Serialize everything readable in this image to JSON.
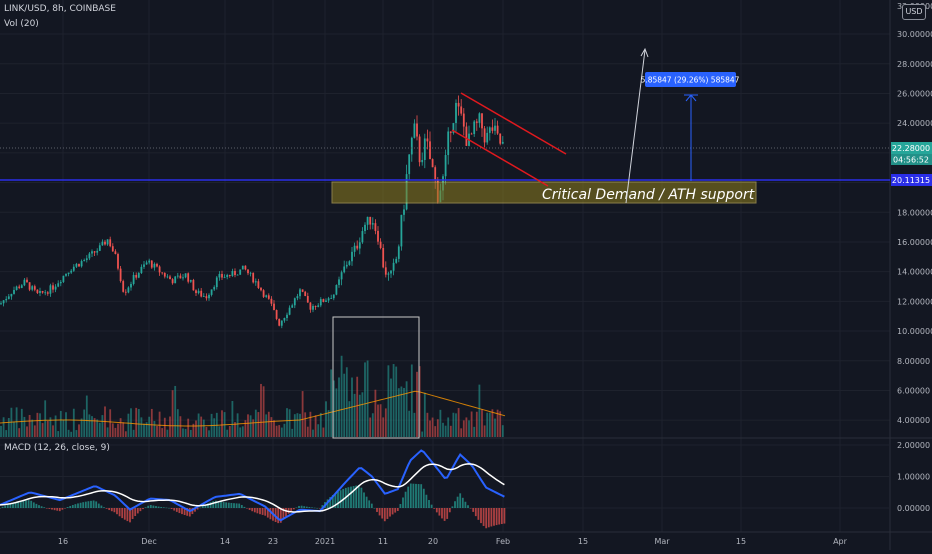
{
  "header": {
    "symbol_line": "LINK/USD, 8h, COINBASE",
    "volume_label": "Vol (20)",
    "macd_label": "MACD (12, 26, close, 9)",
    "currency_button": "USD"
  },
  "price_axis": {
    "ticks": [
      "30.00000",
      "28.00000",
      "26.00000",
      "24.00000",
      "18.00000",
      "16.00000",
      "14.00000",
      "12.00000",
      "10.00000",
      "8.00000",
      "6.00000",
      "4.00000"
    ],
    "top_partial_label": "32.00000"
  },
  "macd_axis": {
    "ticks": [
      "2.00000",
      "1.00000",
      "0.00000"
    ]
  },
  "time_axis": {
    "ticks": [
      "16",
      "Dec",
      "14",
      "23",
      "2021",
      "11",
      "20",
      "Feb",
      "15",
      "Mar",
      "15",
      "Apr"
    ]
  },
  "price_badges": {
    "last_price": "22.28000",
    "countdown": "04:56:52",
    "support_level": "20.11315"
  },
  "annotations": {
    "zone_label": "Critical Demand / ATH support",
    "measure_label": "5.85847 (29.26%) 585847"
  },
  "colors": {
    "background": "#131722",
    "up_candle": "#26a69a",
    "down_candle": "#ef5350",
    "support_line": "#2a2ee8",
    "zone_fill": "#8d7d1e",
    "channel": "#e0191e",
    "macd_line": "#2962ff",
    "signal_line": "#ffffff",
    "volume_ma": "#ff9800",
    "measure_badge": "#2962ff"
  }
}
